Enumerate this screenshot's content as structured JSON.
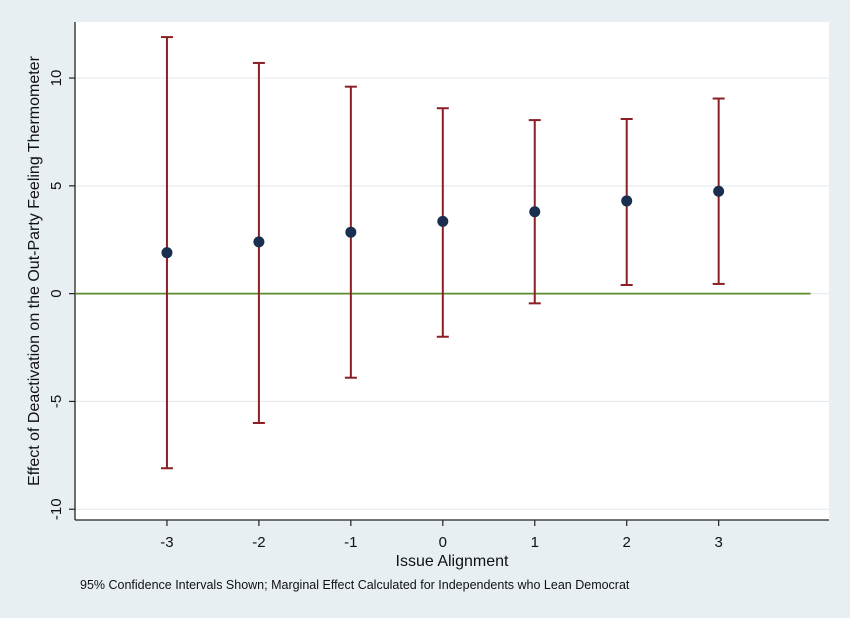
{
  "chart_data": {
    "type": "scatter",
    "title": "",
    "xlabel": "Issue Alignment",
    "ylabel": "Effect of Deactivation on the Out-Party Feeling Thermometer",
    "note": "95% Confidence Intervals Shown; Marginal Effect Calculated for Independents who Lean Democrat",
    "xlim": [
      -4.0,
      4.2
    ],
    "ylim": [
      -10.5,
      12.6
    ],
    "xticks": [
      -3,
      -2,
      -1,
      0,
      1,
      2,
      3
    ],
    "xtick_labels": [
      "-3",
      "-2",
      "-1",
      "0",
      "1",
      "2",
      "3"
    ],
    "yticks": [
      -10,
      -5,
      0,
      5,
      10
    ],
    "ytick_labels": [
      "-10",
      "-5",
      "0",
      "5",
      "10"
    ],
    "grid": true,
    "reference_line": {
      "y": 0,
      "color": "#5a8a2a"
    },
    "marker_color": "#1a2f4f",
    "errorbar_color": "#8b1f24",
    "points": [
      {
        "x": -3,
        "y": 1.9,
        "lower": -8.1,
        "upper": 11.9
      },
      {
        "x": -2,
        "y": 2.4,
        "lower": -6.0,
        "upper": 10.7
      },
      {
        "x": -1,
        "y": 2.85,
        "lower": -3.9,
        "upper": 9.6
      },
      {
        "x": 0,
        "y": 3.35,
        "lower": -2.0,
        "upper": 8.6
      },
      {
        "x": 1,
        "y": 3.8,
        "lower": -0.45,
        "upper": 8.05
      },
      {
        "x": 2,
        "y": 4.3,
        "lower": 0.4,
        "upper": 8.1
      },
      {
        "x": 3,
        "y": 4.75,
        "lower": 0.45,
        "upper": 9.05
      }
    ]
  }
}
